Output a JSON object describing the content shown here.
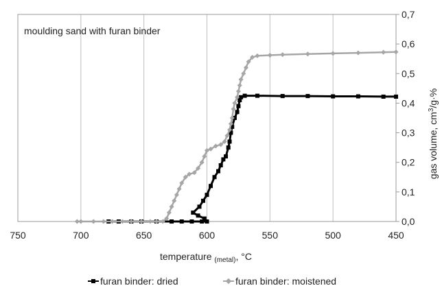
{
  "chart_data": {
    "type": "line",
    "annotation": "moulding sand with furan binder",
    "xlabel": {
      "main": "temperature ",
      "sub": "(metal)",
      "tail": ", °C"
    },
    "ylabel": {
      "main": "gas volume, cm",
      "sup": "3",
      "tail": "/g·%"
    },
    "xlim": [
      750,
      450
    ],
    "ylim": [
      0,
      0.7
    ],
    "x_ticks": [
      750,
      700,
      650,
      600,
      550,
      500,
      450
    ],
    "x_tick_labels": [
      "750",
      "700",
      "650",
      "600",
      "550",
      "500",
      "450"
    ],
    "y_ticks": [
      0,
      0.1,
      0.2,
      0.3,
      0.4,
      0.5,
      0.6,
      0.7
    ],
    "y_tick_labels": [
      "0,0",
      "0,1",
      "0,2",
      "0,3",
      "0,4",
      "0,5",
      "0,6",
      "0,7"
    ],
    "grid": {
      "vertical": true,
      "horizontal": false
    },
    "legend_position": "bottom",
    "series": [
      {
        "name": "furan binder: dried",
        "color": "#000000",
        "marker": "square",
        "points": [
          [
            678,
            0.0
          ],
          [
            670,
            0.0
          ],
          [
            660,
            0.0
          ],
          [
            652,
            0.0
          ],
          [
            640,
            0.0
          ],
          [
            628,
            0.0
          ],
          [
            620,
            0.0
          ],
          [
            612,
            0.0
          ],
          [
            604,
            0.0
          ],
          [
            600,
            0.0
          ],
          [
            602,
            0.01
          ],
          [
            607,
            0.02
          ],
          [
            611,
            0.03
          ],
          [
            606,
            0.05
          ],
          [
            603,
            0.07
          ],
          [
            600,
            0.09
          ],
          [
            597,
            0.12
          ],
          [
            594,
            0.15
          ],
          [
            591,
            0.17
          ],
          [
            589,
            0.19
          ],
          [
            587,
            0.21
          ],
          [
            585,
            0.22
          ],
          [
            583,
            0.25
          ],
          [
            582,
            0.27
          ],
          [
            581,
            0.3
          ],
          [
            580,
            0.32
          ],
          [
            578,
            0.35
          ],
          [
            576,
            0.37
          ],
          [
            575,
            0.39
          ],
          [
            574,
            0.41
          ],
          [
            573,
            0.42
          ],
          [
            570,
            0.425
          ],
          [
            560,
            0.425
          ],
          [
            540,
            0.424
          ],
          [
            520,
            0.424
          ],
          [
            500,
            0.423
          ],
          [
            480,
            0.423
          ],
          [
            460,
            0.422
          ],
          [
            450,
            0.422
          ]
        ]
      },
      {
        "name": "furan binder: moistened",
        "color": "#a6a6a6",
        "marker": "diamond",
        "points": [
          [
            703,
            0.0
          ],
          [
            700,
            0.0
          ],
          [
            690,
            0.0
          ],
          [
            682,
            0.0
          ],
          [
            675,
            0.0
          ],
          [
            667,
            0.0
          ],
          [
            660,
            0.0
          ],
          [
            652,
            0.0
          ],
          [
            645,
            0.0
          ],
          [
            640,
            0.0
          ],
          [
            635,
            0.0
          ],
          [
            632,
            0.01
          ],
          [
            630,
            0.03
          ],
          [
            628,
            0.05
          ],
          [
            626,
            0.07
          ],
          [
            624,
            0.09
          ],
          [
            622,
            0.11
          ],
          [
            620,
            0.13
          ],
          [
            617,
            0.15
          ],
          [
            614,
            0.16
          ],
          [
            610,
            0.165
          ],
          [
            607,
            0.18
          ],
          [
            604,
            0.2
          ],
          [
            602,
            0.22
          ],
          [
            600,
            0.24
          ],
          [
            597,
            0.245
          ],
          [
            593,
            0.255
          ],
          [
            589,
            0.26
          ],
          [
            586,
            0.27
          ],
          [
            584,
            0.29
          ],
          [
            582,
            0.31
          ],
          [
            581,
            0.33
          ],
          [
            580,
            0.35
          ],
          [
            579,
            0.38
          ],
          [
            578,
            0.4
          ],
          [
            576,
            0.42
          ],
          [
            575,
            0.44
          ],
          [
            574,
            0.46
          ],
          [
            573,
            0.48
          ],
          [
            571,
            0.5
          ],
          [
            569,
            0.52
          ],
          [
            567,
            0.54
          ],
          [
            564,
            0.555
          ],
          [
            560,
            0.56
          ],
          [
            550,
            0.562
          ],
          [
            540,
            0.564
          ],
          [
            520,
            0.566
          ],
          [
            500,
            0.568
          ],
          [
            480,
            0.57
          ],
          [
            460,
            0.572
          ],
          [
            450,
            0.573
          ]
        ]
      }
    ]
  }
}
